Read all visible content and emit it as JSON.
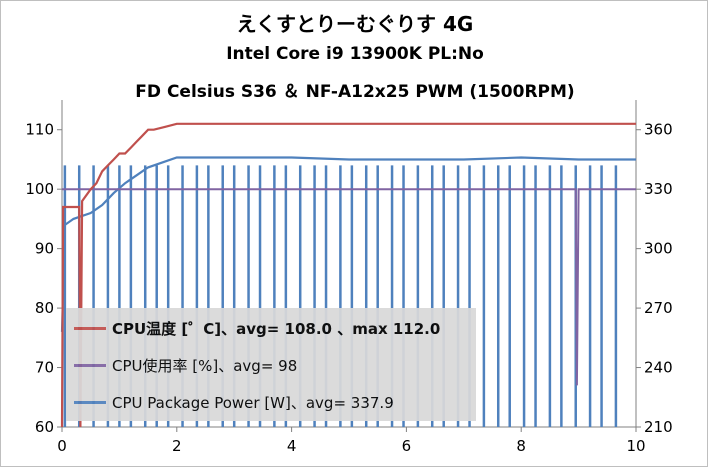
{
  "titles": {
    "line1": "えくすとりーむぐりす 4G",
    "line2": "Intel Core i9 13900K PL:No",
    "line3": "FD Celsius S36 ＆ NF-A12x25 PWM (1500RPM)"
  },
  "legend": [
    {
      "label": "CPU温度 [゜C]、avg= 108.0 、max 112.0",
      "color": "#c0504d",
      "bold": true
    },
    {
      "label": "CPU使用率 [%]、avg= 98",
      "color": "#8064a2",
      "bold": false
    },
    {
      "label": "CPU Package Power [W]、avg= 337.9",
      "color": "#4f81bd",
      "bold": false
    }
  ],
  "chart_data": {
    "type": "line",
    "xlim": [
      0,
      10
    ],
    "x_ticks": [
      "0",
      "2",
      "4",
      "6",
      "8",
      "10"
    ],
    "y_left_lim": [
      60,
      115
    ],
    "y_left_ticks": [
      "60",
      "70",
      "80",
      "90",
      "100",
      "110"
    ],
    "y_right_lim": [
      210,
      375
    ],
    "y_right_ticks": [
      "210",
      "240",
      "270",
      "300",
      "330",
      "360"
    ],
    "series": [
      {
        "name": "CPU温度 [゜C]、avg= 108.0 、max 112.0",
        "axis": "left",
        "color": "#c0504d",
        "x": [
          0,
          0.02,
          0.05,
          0.3,
          0.32,
          0.35,
          0.5,
          0.6,
          0.7,
          0.8,
          0.9,
          1.0,
          1.1,
          1.2,
          1.3,
          1.4,
          1.5,
          1.6,
          1.8,
          2.0,
          2.5,
          3.0,
          4.0,
          5.0,
          6.0,
          7.0,
          8.0,
          9.0,
          10.0
        ],
        "y": [
          60,
          97,
          97,
          97,
          60,
          98,
          100,
          101,
          103,
          104,
          105,
          106,
          106,
          107,
          108,
          109,
          110,
          110,
          110.5,
          111,
          111,
          111,
          111,
          111,
          111,
          111,
          111,
          111,
          111
        ]
      },
      {
        "name": "CPU使用率 [%]、avg= 98",
        "axis": "left",
        "color": "#8064a2",
        "x": [
          0,
          0.02,
          8.95,
          8.97,
          9.0,
          10.0
        ],
        "y": [
          100,
          100,
          100,
          67,
          100,
          100
        ]
      },
      {
        "name": "CPU Package Power [W]、avg= 337.9",
        "axis": "right",
        "color": "#4f81bd",
        "x": [
          0,
          0.05,
          0.2,
          0.3,
          0.5,
          0.7,
          0.9,
          1.1,
          1.3,
          1.5,
          1.8,
          2.0,
          3.0,
          4.0,
          5.0,
          6.0,
          7.0,
          8.0,
          9.0,
          10.0
        ],
        "y": [
          258,
          312,
          315,
          316,
          318,
          322,
          328,
          333,
          337,
          341,
          344,
          346,
          346,
          346,
          345,
          345,
          345,
          346,
          345,
          345
        ],
        "dips_x": [
          0.05,
          0.3,
          0.55,
          0.8,
          1.0,
          1.2,
          1.45,
          1.65,
          1.85,
          2.1,
          2.35,
          2.55,
          2.8,
          3.0,
          3.25,
          3.45,
          3.7,
          3.9,
          4.15,
          4.4,
          4.6,
          4.85,
          5.05,
          5.3,
          5.5,
          5.75,
          5.95,
          6.2,
          6.45,
          6.65,
          6.9,
          7.1,
          7.35,
          7.6,
          7.8,
          8.05,
          8.25,
          8.5,
          8.7,
          8.95,
          9.2,
          9.4,
          9.65
        ],
        "dip_min": 210
      }
    ]
  }
}
